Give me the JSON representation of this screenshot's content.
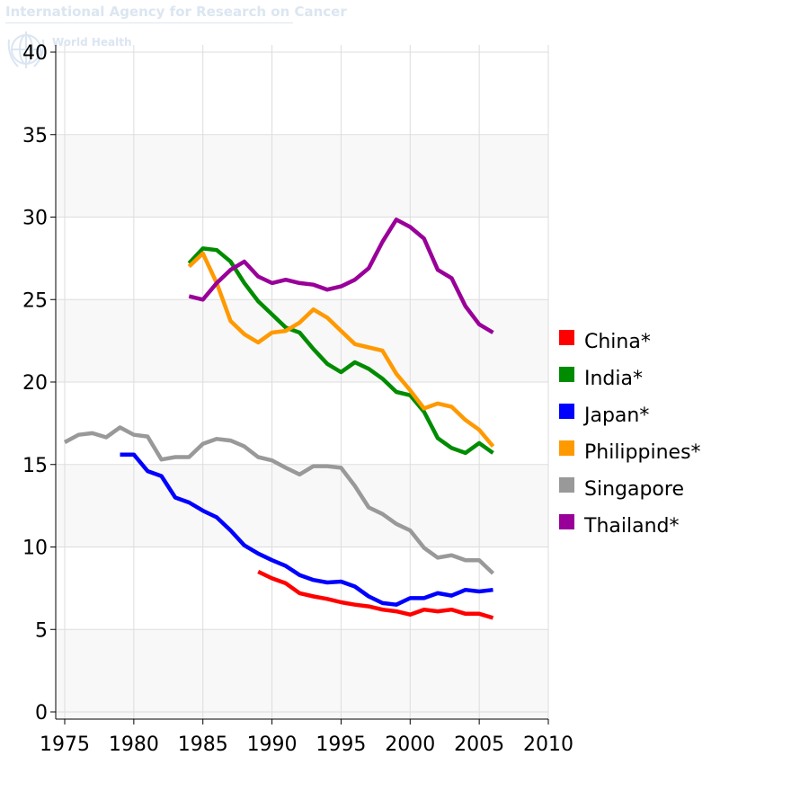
{
  "watermark": {
    "agency": "International Agency for Research on Cancer",
    "who": "World Health"
  },
  "chart_data": {
    "type": "line",
    "title": "",
    "xlabel": "",
    "ylabel": "",
    "xlim": [
      1975,
      2010
    ],
    "ylim": [
      0,
      40
    ],
    "xticks": [
      1975,
      1980,
      1985,
      1990,
      1995,
      2000,
      2005,
      2010
    ],
    "yticks": [
      0,
      5,
      10,
      15,
      20,
      25,
      30,
      35,
      40
    ],
    "grid": true,
    "legend_position": "right",
    "series": [
      {
        "name": "China*",
        "color": "#ff0000",
        "x": [
          1989,
          1990,
          1991,
          1992,
          1993,
          1994,
          1995,
          1996,
          1997,
          1998,
          1999,
          2000,
          2001,
          2002,
          2003,
          2004,
          2005,
          2006
        ],
        "y": [
          8.5,
          8.1,
          7.8,
          7.2,
          7.0,
          6.85,
          6.65,
          6.5,
          6.4,
          6.2,
          6.1,
          5.9,
          6.2,
          6.1,
          6.2,
          5.95,
          5.95,
          5.7
        ]
      },
      {
        "name": "India*",
        "color": "#008c00",
        "x": [
          1984,
          1985,
          1986,
          1987,
          1988,
          1989,
          1990,
          1991,
          1992,
          1993,
          1994,
          1995,
          1996,
          1997,
          1998,
          1999,
          2000,
          2001,
          2002,
          2003,
          2004,
          2005,
          2006
        ],
        "y": [
          27.2,
          28.1,
          28.0,
          27.3,
          26.0,
          24.9,
          24.1,
          23.3,
          23.0,
          22.0,
          21.1,
          20.6,
          21.2,
          20.8,
          20.2,
          19.4,
          19.2,
          18.2,
          16.6,
          16.0,
          15.7,
          16.3,
          15.7
        ]
      },
      {
        "name": "Japan*",
        "color": "#0000ff",
        "x": [
          1979,
          1980,
          1981,
          1982,
          1983,
          1984,
          1985,
          1986,
          1987,
          1988,
          1989,
          1990,
          1991,
          1992,
          1993,
          1994,
          1995,
          1996,
          1997,
          1998,
          1999,
          2000,
          2001,
          2002,
          2003,
          2004,
          2005,
          2006
        ],
        "y": [
          15.6,
          15.6,
          14.6,
          14.3,
          13.0,
          12.7,
          12.2,
          11.8,
          11.0,
          10.1,
          9.6,
          9.2,
          8.85,
          8.3,
          8.0,
          7.85,
          7.9,
          7.6,
          7.0,
          6.6,
          6.5,
          6.9,
          6.9,
          7.2,
          7.05,
          7.4,
          7.3,
          7.4
        ]
      },
      {
        "name": "Philippines*",
        "color": "#ff9900",
        "x": [
          1984,
          1985,
          1986,
          1987,
          1988,
          1989,
          1990,
          1991,
          1992,
          1993,
          1994,
          1995,
          1996,
          1997,
          1998,
          1999,
          2000,
          2001,
          2002,
          2003,
          2004,
          2005,
          2006
        ],
        "y": [
          27.0,
          27.8,
          26.0,
          23.7,
          22.9,
          22.4,
          23.0,
          23.1,
          23.6,
          24.4,
          23.9,
          23.1,
          22.3,
          22.1,
          21.9,
          20.5,
          19.5,
          18.4,
          18.7,
          18.5,
          17.7,
          17.1,
          16.1
        ]
      },
      {
        "name": "Singapore",
        "color": "#999999",
        "x": [
          1975,
          1976,
          1977,
          1978,
          1979,
          1980,
          1981,
          1982,
          1983,
          1984,
          1985,
          1986,
          1987,
          1988,
          1989,
          1990,
          1991,
          1992,
          1993,
          1994,
          1995,
          1996,
          1997,
          1998,
          1999,
          2000,
          2001,
          2002,
          2003,
          2004,
          2005,
          2006
        ],
        "y": [
          16.35,
          16.8,
          16.9,
          16.65,
          17.25,
          16.8,
          16.7,
          15.3,
          15.45,
          15.45,
          16.25,
          16.55,
          16.45,
          16.1,
          15.45,
          15.25,
          14.8,
          14.4,
          14.9,
          14.9,
          14.8,
          13.7,
          12.4,
          12.0,
          11.4,
          11.0,
          9.95,
          9.35,
          9.5,
          9.2,
          9.2,
          8.4
        ]
      },
      {
        "name": "Thailand*",
        "color": "#990099",
        "x": [
          1984,
          1985,
          1986,
          1987,
          1988,
          1989,
          1990,
          1991,
          1992,
          1993,
          1994,
          1995,
          1996,
          1997,
          1998,
          1999,
          2000,
          2001,
          2002,
          2003,
          2004,
          2005,
          2006
        ],
        "y": [
          25.2,
          25.0,
          26.0,
          26.8,
          27.3,
          26.4,
          26.0,
          26.2,
          26.0,
          25.9,
          25.6,
          25.8,
          26.2,
          26.9,
          28.5,
          29.85,
          29.4,
          28.7,
          26.8,
          26.3,
          24.6,
          23.5,
          23.0
        ]
      }
    ]
  }
}
